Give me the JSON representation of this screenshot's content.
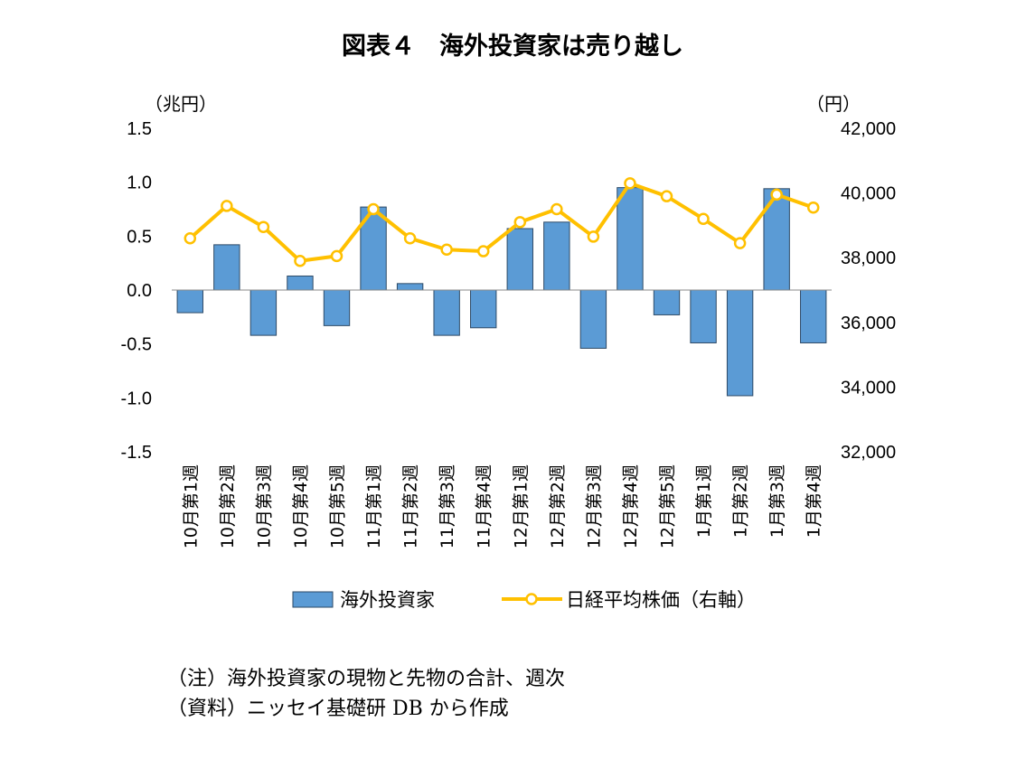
{
  "colors": {
    "bar_fill": "#5b9bd5",
    "bar_stroke": "#2e4a66",
    "line": "#ffc000",
    "marker_fill": "#ffffff",
    "axis": "#888888"
  },
  "chart_data": {
    "type": "bar",
    "title": "図表４　海外投資家は売り越し",
    "y_left_unit": "（兆円）",
    "y_right_unit": "（円）",
    "y_left_ticks": [
      "1.5",
      "1.0",
      "0.5",
      "0.0",
      "-0.5",
      "-1.0",
      "-1.5"
    ],
    "y_right_ticks": [
      "42,000",
      "40,000",
      "38,000",
      "36,000",
      "34,000",
      "32,000"
    ],
    "ylim_left": [
      -1.5,
      1.5
    ],
    "ylim_right": [
      32000,
      42000
    ],
    "categories": [
      "10月第1週",
      "10月第2週",
      "10月第3週",
      "10月第4週",
      "10月第5週",
      "11月第1週",
      "11月第2週",
      "11月第3週",
      "11月第4週",
      "12月第1週",
      "12月第2週",
      "12月第3週",
      "12月第4週",
      "12月第5週",
      "1月第1週",
      "1月第2週",
      "1月第3週",
      "1月第4週"
    ],
    "series": [
      {
        "name": "海外投資家",
        "type": "bar",
        "axis": "left",
        "values": [
          -0.21,
          0.42,
          -0.42,
          0.13,
          -0.33,
          0.77,
          0.06,
          -0.42,
          -0.35,
          0.57,
          0.63,
          -0.54,
          0.95,
          -0.23,
          -0.49,
          -0.98,
          0.94,
          -0.49
        ]
      },
      {
        "name": "日経平均株価（右軸）",
        "type": "line",
        "axis": "right",
        "values": [
          38600,
          39600,
          38950,
          37900,
          38050,
          39500,
          38600,
          38250,
          38200,
          39100,
          39500,
          38650,
          40300,
          39900,
          39200,
          38450,
          39950,
          39550
        ]
      }
    ],
    "grid": false,
    "legend": "bottom"
  },
  "notes": [
    "（注）海外投資家の現物と先物の合計、週次",
    "（資料）ニッセイ基礎研 DB から作成"
  ]
}
